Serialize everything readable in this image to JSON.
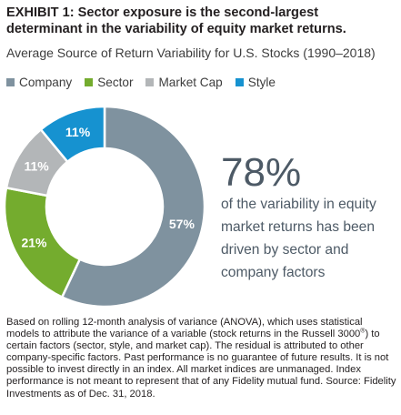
{
  "title": "EXHIBIT 1: Sector exposure is the second-largest determinant in the variability of equity market returns.",
  "subtitle": "Average Source of Return Variability for U.S. Stocks (1990–2018)",
  "callout": {
    "value": "78%",
    "text": "of the variability in equity market returns has been driven by sector and company factors"
  },
  "note": {
    "part1": "Based on rolling 12-month analysis of variance (ANOVA), which uses statistical models to attribute the variance of a variable (stock returns in the Russell 3000",
    "reg": "®",
    "part2": ") to certain factors (sector, style, and market cap). The residual is attributed to other company-specific factors. Past performance is no guarantee of future results. It is not possible to invest directly in an index. All market indices are unmanaged. Index performance is not meant to represent that of any Fidelity mutual fund. Source: Fidelity Investments as of Dec. 31, 2018."
  },
  "chart_data": {
    "type": "pie",
    "variant": "donut",
    "title": "Average Source of Return Variability for U.S. Stocks (1990–2018)",
    "legend_position": "top",
    "categories": [
      "Company",
      "Sector",
      "Market Cap",
      "Style"
    ],
    "values": [
      57,
      21,
      11,
      11
    ],
    "labels": [
      "57%",
      "21%",
      "11%",
      "11%"
    ],
    "colors": [
      "#7f929f",
      "#74ac2e",
      "#b3b6b8",
      "#1692d0"
    ]
  }
}
